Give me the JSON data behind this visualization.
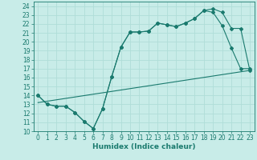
{
  "title": "",
  "xlabel": "Humidex (Indice chaleur)",
  "bg_color": "#c8ece8",
  "grid_color": "#b0ddd8",
  "line_color": "#1a7a6e",
  "xlim": [
    -0.5,
    23.5
  ],
  "ylim": [
    10,
    24.5
  ],
  "xticks": [
    0,
    1,
    2,
    3,
    4,
    5,
    6,
    7,
    8,
    9,
    10,
    11,
    12,
    13,
    14,
    15,
    16,
    17,
    18,
    19,
    20,
    21,
    22,
    23
  ],
  "yticks": [
    10,
    11,
    12,
    13,
    14,
    15,
    16,
    17,
    18,
    19,
    20,
    21,
    22,
    23,
    24
  ],
  "line1_x": [
    0,
    1,
    2,
    3,
    4,
    5,
    6,
    7,
    8,
    9,
    10,
    11,
    12,
    13,
    14,
    15,
    16,
    17,
    18,
    19,
    20,
    21,
    22,
    23
  ],
  "line1_y": [
    14.0,
    13.0,
    12.8,
    12.8,
    12.1,
    11.1,
    10.3,
    12.5,
    16.1,
    19.4,
    21.1,
    21.1,
    21.2,
    22.1,
    21.9,
    21.7,
    22.1,
    22.6,
    23.5,
    23.3,
    21.8,
    19.3,
    17.0,
    17.0
  ],
  "line2_x": [
    0,
    1,
    2,
    3,
    4,
    5,
    6,
    7,
    8,
    9,
    10,
    11,
    12,
    13,
    14,
    15,
    16,
    17,
    18,
    19,
    20,
    21,
    22,
    23
  ],
  "line2_y": [
    14.0,
    13.0,
    12.8,
    12.8,
    12.1,
    11.1,
    10.3,
    12.5,
    16.1,
    19.4,
    21.1,
    21.1,
    21.2,
    22.1,
    21.9,
    21.7,
    22.1,
    22.6,
    23.5,
    23.7,
    23.3,
    21.5,
    21.5,
    16.8
  ],
  "line3_x": [
    0,
    23
  ],
  "line3_y": [
    13.2,
    16.8
  ],
  "font_color": "#1a7a6e",
  "tick_fontsize": 5.5,
  "xlabel_fontsize": 6.5
}
